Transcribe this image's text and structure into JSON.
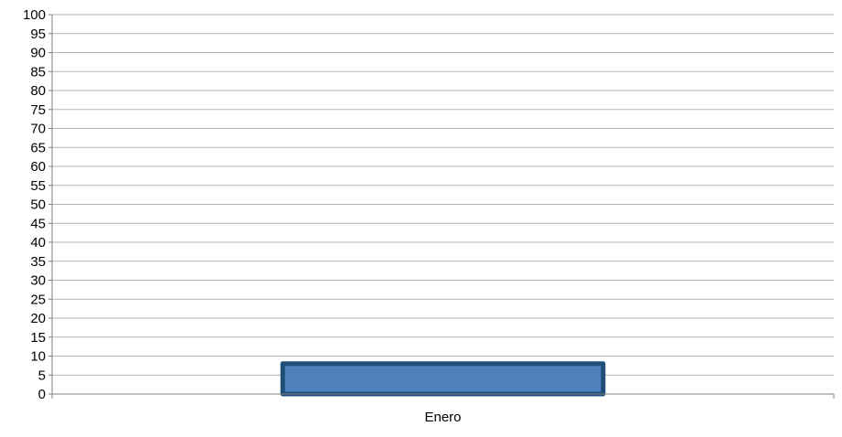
{
  "chart_data": {
    "type": "bar",
    "title": "",
    "xlabel": "",
    "ylabel": "",
    "categories": [
      "Enero"
    ],
    "series": [
      {
        "values": [
          8
        ]
      }
    ],
    "ylim": [
      0,
      100
    ],
    "ytick_step": 5,
    "yticks": [
      "0",
      "5",
      "10",
      "15",
      "20",
      "25",
      "30",
      "35",
      "40",
      "45",
      "50",
      "55",
      "60",
      "65",
      "70",
      "75",
      "80",
      "85",
      "90",
      "95",
      "100"
    ],
    "grid": true,
    "legend": "none",
    "colors": {
      "bar_fill": "#4f81bd",
      "bar_edge": "#1f4e79",
      "grid": "#b3b3b3",
      "axis": "#808080"
    }
  }
}
